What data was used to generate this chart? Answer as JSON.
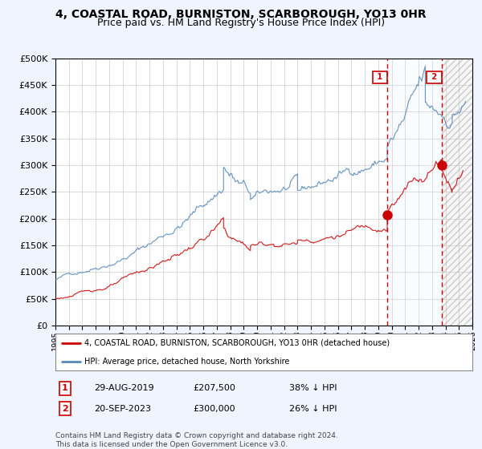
{
  "title": "4, COASTAL ROAD, BURNISTON, SCARBOROUGH, YO13 0HR",
  "subtitle": "Price paid vs. HM Land Registry's House Price Index (HPI)",
  "title_fontsize": 10,
  "subtitle_fontsize": 9,
  "bg_color": "#f0f4ff",
  "plot_bg_color": "#ffffff",
  "legend_line1": "4, COASTAL ROAD, BURNISTON, SCARBOROUGH, YO13 0HR (detached house)",
  "legend_line2": "HPI: Average price, detached house, North Yorkshire",
  "annotation1_label": "1",
  "annotation1_date": "29-AUG-2019",
  "annotation1_price": "£207,500",
  "annotation1_pct": "38% ↓ HPI",
  "annotation2_label": "2",
  "annotation2_date": "20-SEP-2023",
  "annotation2_price": "£300,000",
  "annotation2_pct": "26% ↓ HPI",
  "footnote": "Contains HM Land Registry data © Crown copyright and database right 2024.\nThis data is licensed under the Open Government Licence v3.0.",
  "hpi_color": "#5588bb",
  "price_color": "#cc0000",
  "vline_color": "#cc0000",
  "marker_color": "#cc0000",
  "shade_color": "#ddeeff",
  "ylim": [
    0,
    500000
  ],
  "yticks": [
    0,
    50000,
    100000,
    150000,
    200000,
    250000,
    300000,
    350000,
    400000,
    450000,
    500000
  ],
  "xmin_year": 1995,
  "xmax_year": 2026,
  "sale1_year": 2019.67,
  "sale1_price": 207500,
  "sale2_year": 2023.72,
  "sale2_price": 300000,
  "xtick_years": [
    1995,
    1996,
    1997,
    1998,
    1999,
    2000,
    2001,
    2002,
    2003,
    2004,
    2005,
    2006,
    2007,
    2008,
    2009,
    2010,
    2011,
    2012,
    2013,
    2014,
    2015,
    2016,
    2017,
    2018,
    2019,
    2020,
    2021,
    2022,
    2023,
    2024,
    2025,
    2026
  ]
}
